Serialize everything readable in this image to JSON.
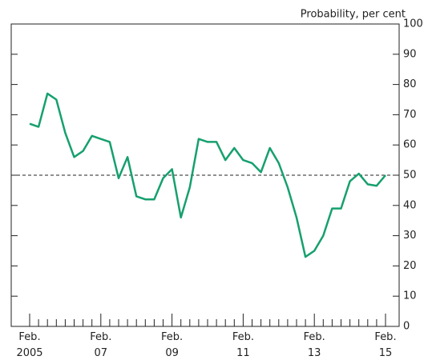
{
  "chart_data": {
    "type": "line",
    "y_label": "Probability, per cent",
    "categories": [
      "Feb. 2005",
      null,
      null,
      null,
      null,
      null,
      null,
      null,
      "Feb. 07",
      null,
      null,
      null,
      null,
      null,
      null,
      null,
      "Feb. 09",
      null,
      null,
      null,
      null,
      null,
      null,
      null,
      "Feb. 11",
      null,
      null,
      null,
      null,
      null,
      null,
      null,
      "Feb. 13",
      null,
      null,
      null,
      null,
      null,
      null,
      null,
      "Feb. 15"
    ],
    "series": [
      {
        "color": "#16a06e",
        "values": [
          67,
          66,
          77,
          75,
          64,
          56,
          58,
          63,
          62,
          61,
          49,
          56,
          43,
          42,
          42,
          49,
          52,
          36,
          46,
          62,
          61,
          61,
          55,
          59,
          55,
          54,
          51,
          59,
          54,
          46,
          36,
          23,
          25,
          30,
          39,
          39,
          48,
          50.5,
          47,
          46.5,
          50
        ]
      }
    ],
    "ylim": [
      0,
      100
    ],
    "yticks": [
      0,
      10,
      20,
      30,
      40,
      50,
      60,
      70,
      80,
      90,
      100
    ],
    "reference_line": 50
  }
}
